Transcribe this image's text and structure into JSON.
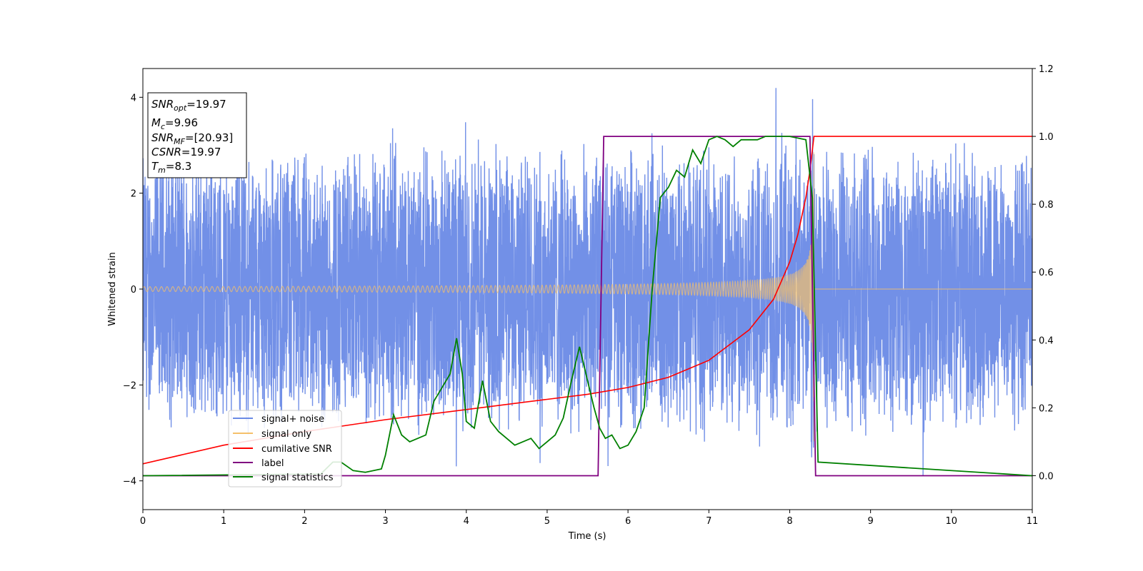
{
  "chart_data": {
    "type": "line",
    "xlabel": "Time (s)",
    "ylabel": "Whitened strain",
    "xlim": [
      0,
      11
    ],
    "ylim_left": [
      -4.6,
      4.6
    ],
    "ylim_right": [
      -0.1,
      1.2
    ],
    "x_ticks": [
      0,
      1,
      2,
      3,
      4,
      5,
      6,
      7,
      8,
      9,
      10,
      11
    ],
    "y_ticks_left": [
      -4,
      -2,
      0,
      2,
      4
    ],
    "y_ticks_right": [
      "0.0",
      "0.2",
      "0.4",
      "0.6",
      "0.8",
      "1.0",
      "1.2"
    ],
    "legend_position": "lower-left",
    "series": [
      {
        "name": "signal+ noise",
        "axis": "left",
        "color": "#6a8ae6",
        "style": "dense noisy time series, roughly +/-2.5 with spikes to about 4.2, containing the chirp",
        "x_range": [
          0,
          11
        ],
        "approx_amplitude": 2.5
      },
      {
        "name": "signal only",
        "axis": "left",
        "color": "#f5c06a",
        "style": "chirp: amplitude grows from about 0.05 to about 3.3 at merger time 8.3, then 0",
        "merger_time": 8.3,
        "start_amplitude": 0.05,
        "peak_amplitude": 3.3
      },
      {
        "name": "cumilative SNR",
        "axis": "right",
        "color": "#ff0000",
        "x": [
          0,
          1,
          2,
          3,
          4,
          5,
          5.5,
          6,
          6.5,
          7,
          7.5,
          7.8,
          8.0,
          8.1,
          8.2,
          8.25,
          8.3,
          11
        ],
        "y": [
          0.035,
          0.09,
          0.13,
          0.165,
          0.195,
          0.225,
          0.24,
          0.26,
          0.29,
          0.34,
          0.43,
          0.52,
          0.63,
          0.71,
          0.82,
          0.9,
          1.0,
          1.0
        ]
      },
      {
        "name": "label",
        "axis": "right",
        "color": "#800080",
        "x": [
          0,
          5.63,
          5.7,
          8.25,
          8.32,
          11
        ],
        "y": [
          0.0,
          0.0,
          1.0,
          1.0,
          0.0,
          0.0
        ]
      },
      {
        "name": "signal statistics",
        "axis": "right",
        "color": "#008000",
        "x": [
          0,
          2.2,
          2.35,
          2.45,
          2.6,
          2.75,
          2.95,
          3.0,
          3.1,
          3.2,
          3.3,
          3.4,
          3.5,
          3.6,
          3.7,
          3.8,
          3.88,
          3.95,
          4.0,
          4.1,
          4.2,
          4.3,
          4.4,
          4.5,
          4.6,
          4.7,
          4.8,
          4.9,
          5.0,
          5.1,
          5.2,
          5.3,
          5.4,
          5.5,
          5.58,
          5.65,
          5.72,
          5.8,
          5.9,
          6.0,
          6.1,
          6.2,
          6.3,
          6.4,
          6.5,
          6.6,
          6.7,
          6.8,
          6.9,
          7.0,
          7.1,
          7.2,
          7.3,
          7.4,
          7.5,
          7.6,
          7.7,
          7.8,
          8.0,
          8.2,
          8.28,
          8.35,
          11
        ],
        "y": [
          0.0,
          0.005,
          0.04,
          0.04,
          0.015,
          0.01,
          0.02,
          0.06,
          0.18,
          0.12,
          0.1,
          0.11,
          0.12,
          0.22,
          0.26,
          0.3,
          0.405,
          0.3,
          0.16,
          0.14,
          0.28,
          0.16,
          0.13,
          0.11,
          0.09,
          0.1,
          0.11,
          0.08,
          0.1,
          0.12,
          0.17,
          0.28,
          0.38,
          0.28,
          0.2,
          0.14,
          0.11,
          0.12,
          0.08,
          0.09,
          0.13,
          0.2,
          0.55,
          0.82,
          0.85,
          0.9,
          0.88,
          0.96,
          0.92,
          0.99,
          1.0,
          0.99,
          0.97,
          0.99,
          0.99,
          0.99,
          1.0,
          1.0,
          1.0,
          0.99,
          0.82,
          0.04,
          0.0
        ]
      }
    ]
  },
  "legend": {
    "items": [
      "signal+ noise",
      "signal only",
      "cumilative SNR",
      "label",
      "signal statistics"
    ]
  },
  "info_box": {
    "snr_opt_var": "SNR",
    "snr_opt_sub": "opt",
    "snr_opt_value": "=19.97",
    "mc_var": "M",
    "mc_sub": "c",
    "mc_value": "=9.96",
    "snr_mf_var": "SNR",
    "snr_mf_sub": "MF",
    "snr_mf_value": "=[20.93]",
    "csnr_var": "CSNR",
    "csnr_value": "=19.97",
    "tm_var": "T",
    "tm_sub": "m",
    "tm_value": "=8.3"
  }
}
